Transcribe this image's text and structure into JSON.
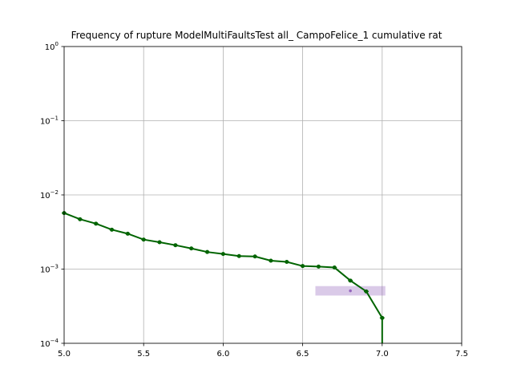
{
  "chart_data": {
    "type": "line",
    "title": "Frequency of rupture ModelMultiFaultsTest all_ CampoFelice_1 cumulative rat",
    "xlabel": "",
    "ylabel": "",
    "xlim": [
      5.0,
      7.5
    ],
    "ylim": [
      0.0001,
      1
    ],
    "yscale": "log",
    "grid": true,
    "x_ticks": [
      "5.0",
      "5.5",
      "6.0",
      "6.5",
      "7.0",
      "7.5"
    ],
    "x_tick_values": [
      5.0,
      5.5,
      6.0,
      6.5,
      7.0,
      7.5
    ],
    "y_ticks": [
      {
        "value": 0.0001,
        "base": "10",
        "exp": "−4"
      },
      {
        "value": 0.001,
        "base": "10",
        "exp": "−3"
      },
      {
        "value": 0.01,
        "base": "10",
        "exp": "−2"
      },
      {
        "value": 0.1,
        "base": "10",
        "exp": "−1"
      },
      {
        "value": 1,
        "base": "10",
        "exp": "0"
      }
    ],
    "series": [
      {
        "color": "#006400",
        "x": [
          5.0,
          5.1,
          5.2,
          5.3,
          5.4,
          5.5,
          5.6,
          5.7,
          5.8,
          5.9,
          6.0,
          6.1,
          6.2,
          6.3,
          6.4,
          6.5,
          6.6,
          6.7,
          6.8,
          6.9,
          7.0,
          7.0
        ],
        "y": [
          0.0057,
          0.0047,
          0.0041,
          0.0034,
          0.003,
          0.0025,
          0.0023,
          0.0021,
          0.0019,
          0.0017,
          0.0016,
          0.0015,
          0.00148,
          0.0013,
          0.00125,
          0.0011,
          0.00108,
          0.00105,
          0.0007,
          0.0005,
          0.00022,
          0.0001
        ]
      }
    ],
    "band": {
      "color": "#9467bd",
      "x": [
        6.58,
        7.02
      ],
      "y": [
        0.00044,
        0.00059
      ]
    },
    "point": {
      "color": "#9467bd",
      "x": 6.8,
      "y": 0.00051
    }
  }
}
